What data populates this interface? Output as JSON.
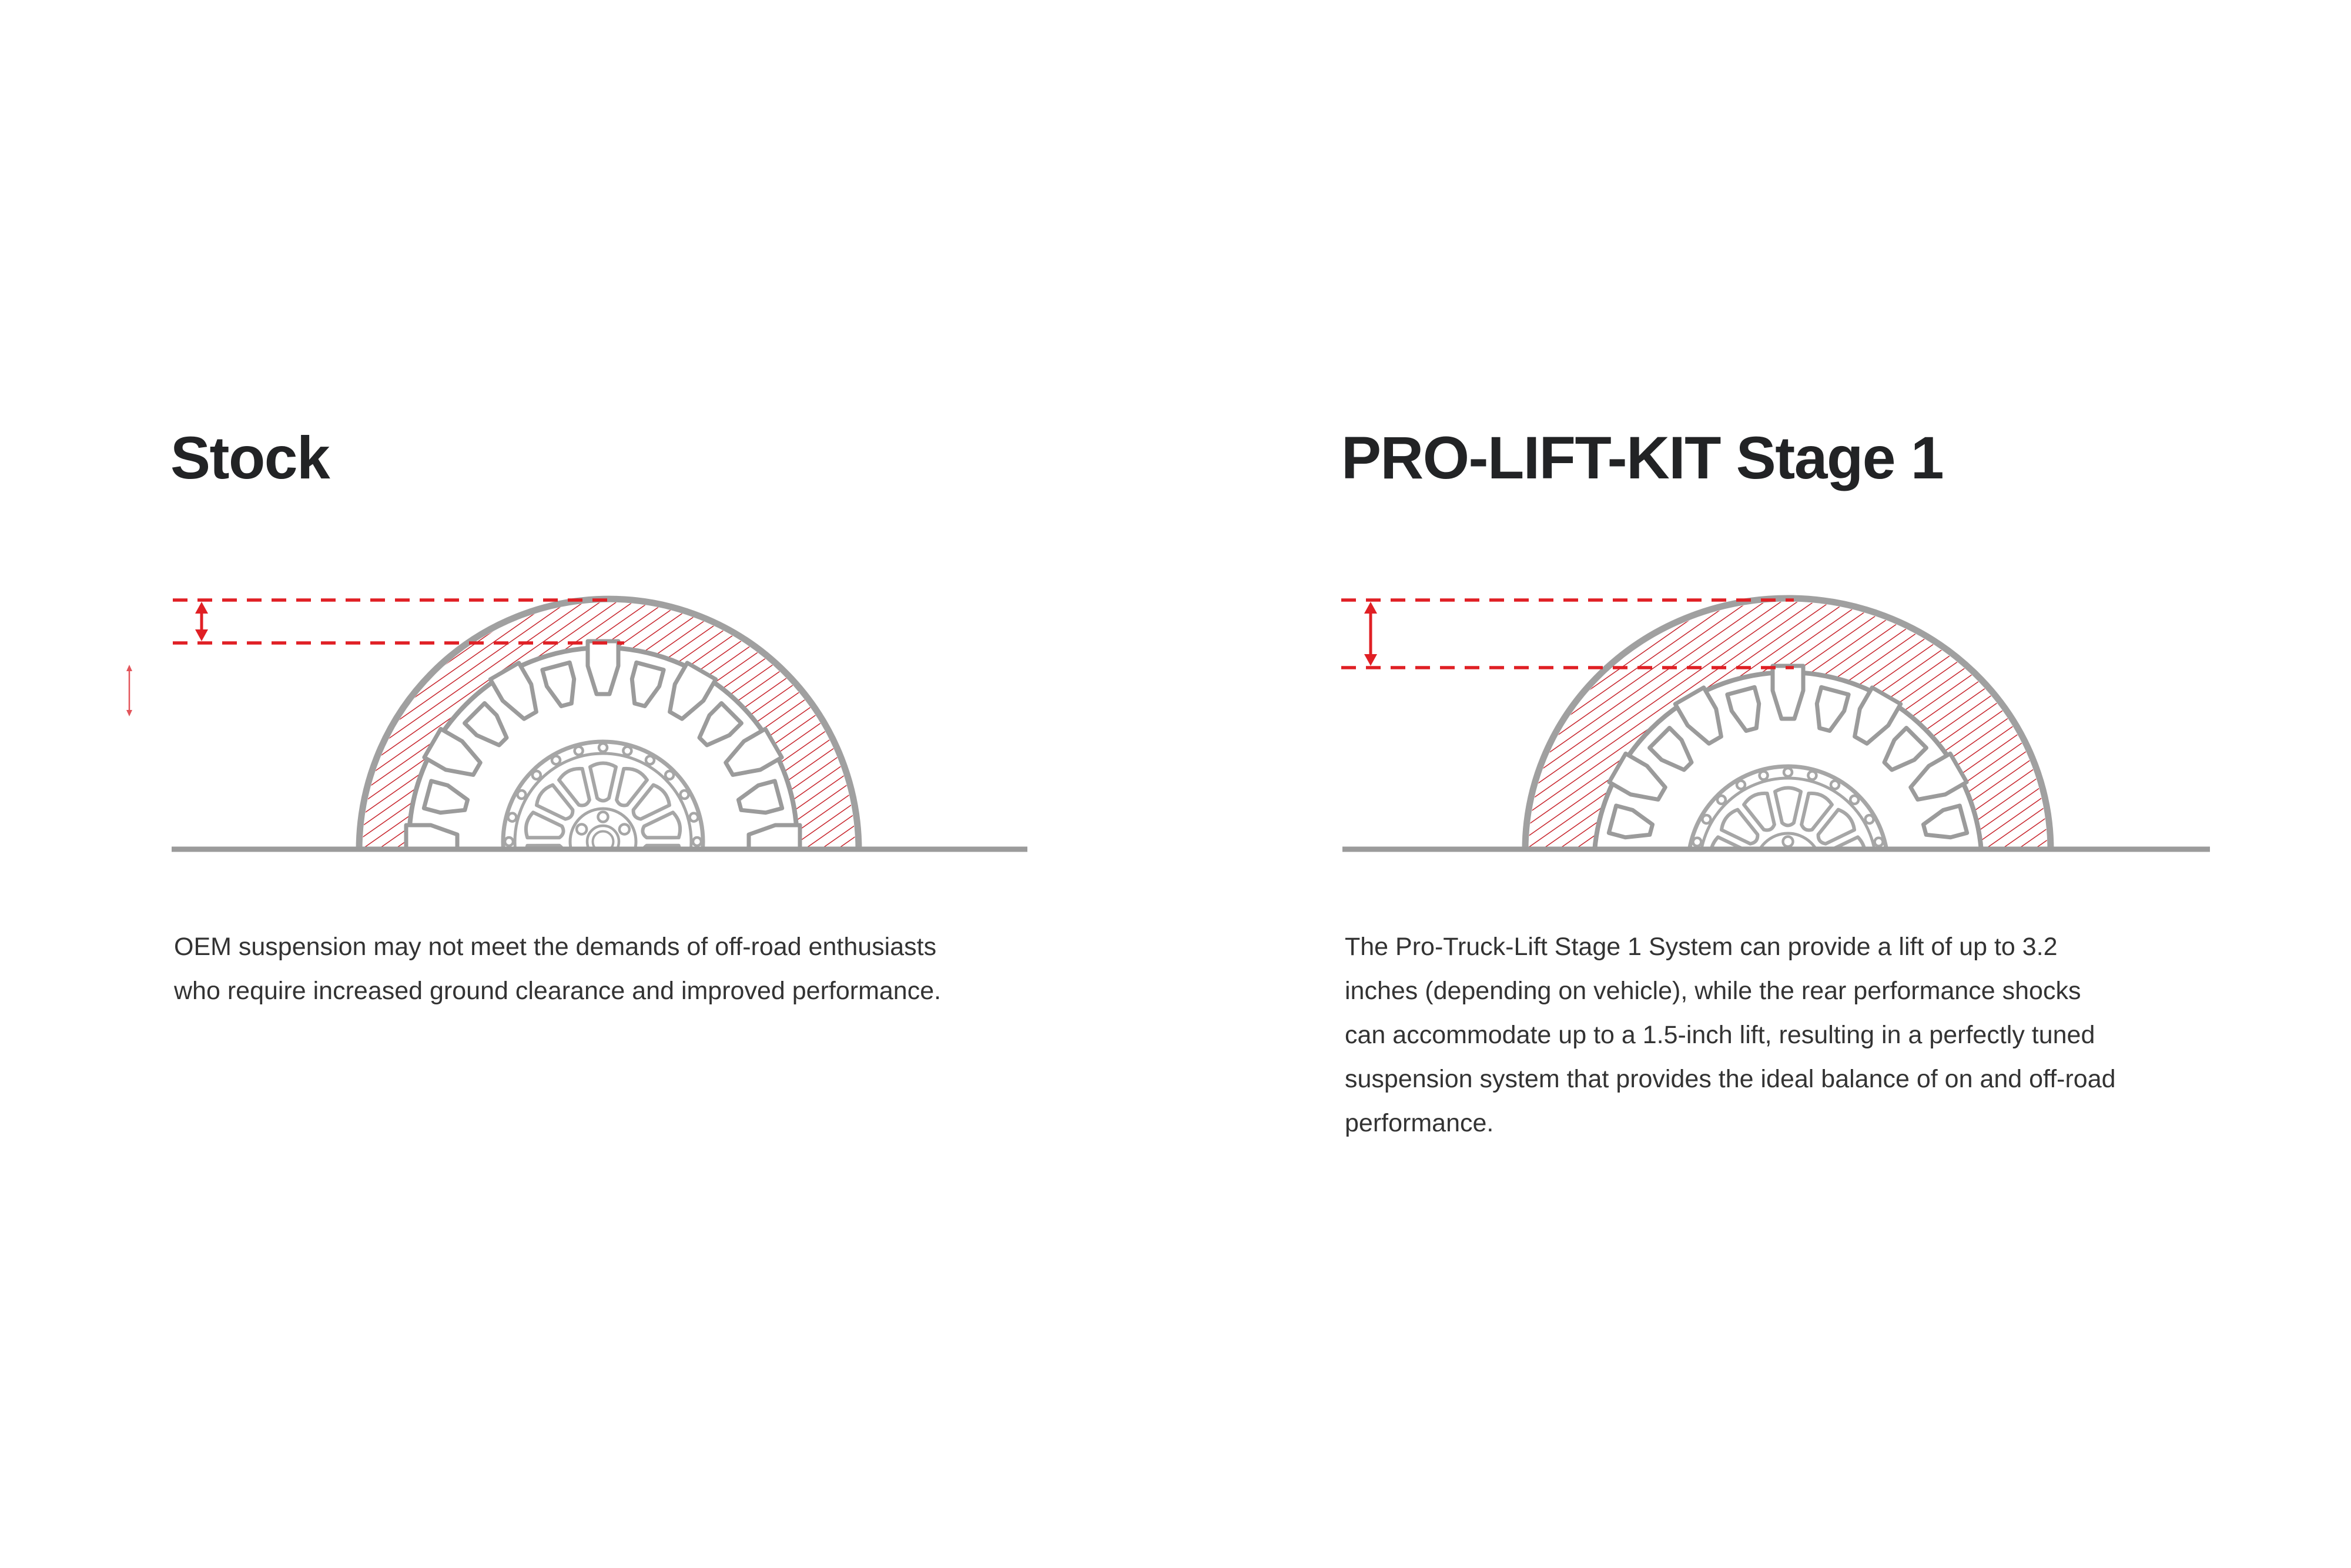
{
  "colors": {
    "accent_red": "#e01f24",
    "hatch_red": "#c7232b",
    "outline_gray": "#9b9b9b",
    "arch_gray": "#a0a0a0",
    "rim_gray": "#a6a6a6",
    "title_text": "#222325",
    "body_text": "#333333",
    "background": "#ffffff"
  },
  "panels": {
    "stock": {
      "title": "Stock",
      "description_lines": [
        "OEM suspension may not meet the demands of off-road enthusiasts",
        "who require increased ground clearance and improved performance."
      ]
    },
    "prolift": {
      "title": "PRO-LIFT-KIT Stage 1",
      "description_lines": [
        "The Pro-Truck-Lift Stage 1 System can provide a lift of up to 3.2",
        "inches (depending on vehicle), while the rear performance shocks",
        "can accommodate up to a 1.5-inch lift, resulting in a perfectly tuned",
        "suspension system that provides the ideal balance of on and off-road",
        "performance."
      ]
    }
  }
}
